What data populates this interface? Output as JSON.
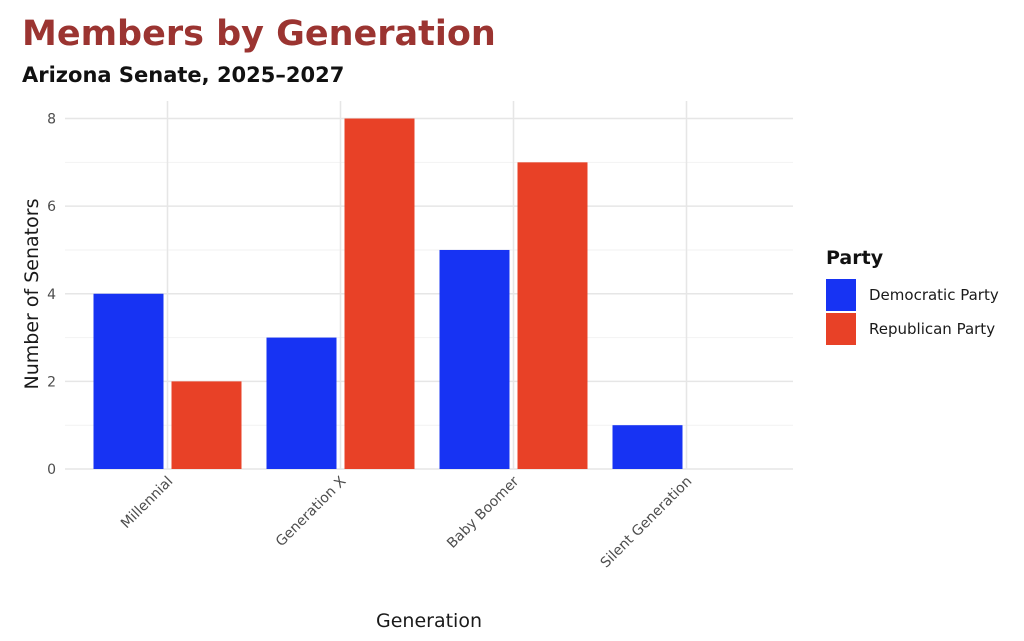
{
  "title": "Members by Generation",
  "subtitle": "Arizona Senate, 2025–2027",
  "chart_data": {
    "type": "bar",
    "categories": [
      "Millennial",
      "Generation X",
      "Baby Boomer",
      "Silent Generation"
    ],
    "series": [
      {
        "name": "Democratic Party",
        "values": [
          4,
          3,
          5,
          1
        ],
        "color": "#1733f3"
      },
      {
        "name": "Republican Party",
        "values": [
          2,
          8,
          7,
          0
        ],
        "color": "#e84127"
      }
    ],
    "xlabel": "Generation",
    "ylabel": "Number of Senators",
    "ylim": [
      0,
      8.4
    ],
    "yticks": [
      0,
      2,
      4,
      6,
      8
    ],
    "legend_title": "Party",
    "legend_position": "right",
    "grid": true
  }
}
